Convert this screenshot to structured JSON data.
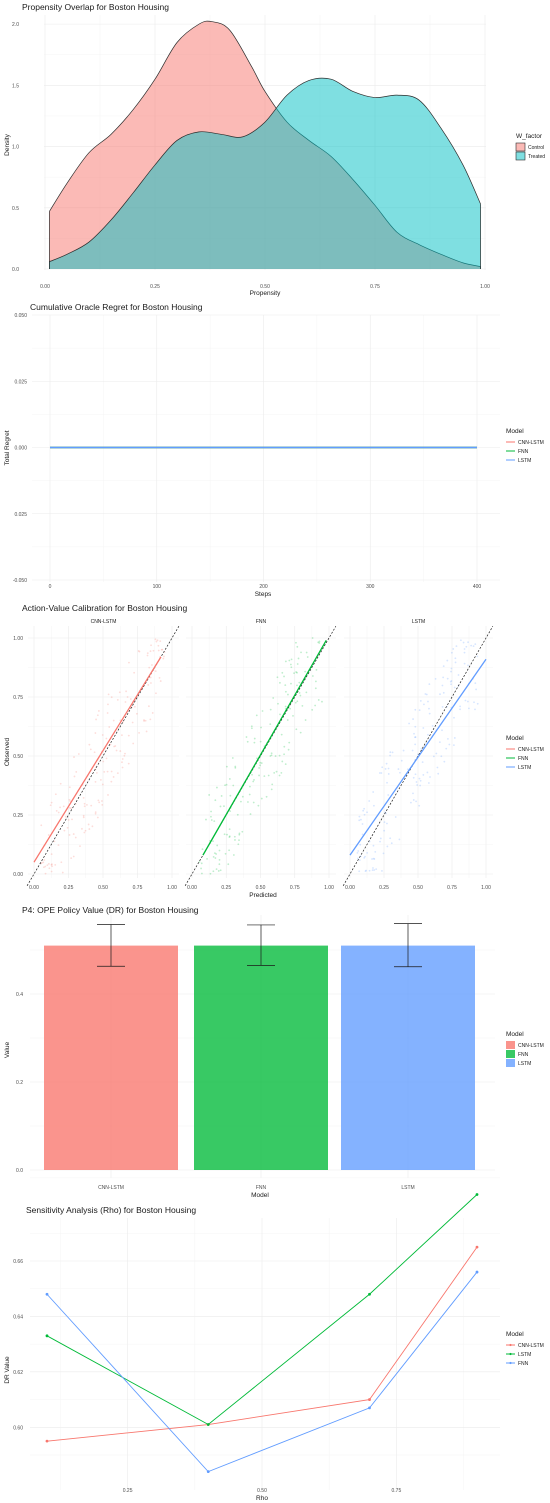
{
  "chart_data": [
    {
      "type": "area",
      "title": "Propensity Overlap for Boston Housing",
      "xlabel": "Propensity",
      "ylabel": "Density",
      "xlim": [
        0,
        1
      ],
      "ylim": [
        0,
        2
      ],
      "xticks": [
        "0.00",
        "0.25",
        "0.50",
        "0.75",
        "1.00"
      ],
      "yticks": [
        "0.0",
        "0.5",
        "1.0",
        "1.5",
        "2.0"
      ],
      "legend_title": "W_factor",
      "legend_position": "right",
      "series": [
        {
          "name": "Control",
          "color": "#F8766D",
          "x": [
            0.01,
            0.05,
            0.1,
            0.15,
            0.2,
            0.25,
            0.3,
            0.35,
            0.38,
            0.42,
            0.47,
            0.5,
            0.55,
            0.6,
            0.65,
            0.7,
            0.75,
            0.8,
            0.85,
            0.9,
            0.95,
            0.99
          ],
          "y": [
            0.47,
            0.7,
            0.95,
            1.1,
            1.3,
            1.55,
            1.85,
            2.0,
            2.02,
            1.95,
            1.65,
            1.45,
            1.2,
            1.05,
            0.92,
            0.73,
            0.52,
            0.3,
            0.2,
            0.12,
            0.05,
            0.02
          ]
        },
        {
          "name": "Treated",
          "color": "#00BFC4",
          "x": [
            0.01,
            0.05,
            0.1,
            0.15,
            0.2,
            0.25,
            0.3,
            0.35,
            0.4,
            0.45,
            0.5,
            0.55,
            0.6,
            0.65,
            0.7,
            0.75,
            0.8,
            0.85,
            0.9,
            0.95,
            0.99
          ],
          "y": [
            0.06,
            0.12,
            0.22,
            0.4,
            0.62,
            0.85,
            1.05,
            1.12,
            1.1,
            1.08,
            1.2,
            1.42,
            1.54,
            1.55,
            1.45,
            1.4,
            1.42,
            1.38,
            1.15,
            0.85,
            0.53
          ]
        }
      ]
    },
    {
      "type": "line",
      "title": "Cumulative Oracle Regret for Boston Housing",
      "xlabel": "Steps",
      "ylabel": "Total Regret",
      "xlim": [
        -20,
        410
      ],
      "ylim": [
        -0.05,
        0.05
      ],
      "xticks": [
        "0",
        "100",
        "200",
        "300",
        "400"
      ],
      "yticks": [
        "0.050",
        "0.025",
        "0.000",
        "0.025",
        "-0.050"
      ],
      "legend_title": "Model",
      "legend_position": "right",
      "series": [
        {
          "name": "CNN-LSTM",
          "color": "#F8766D",
          "x": [
            0,
            400
          ],
          "y": [
            0,
            0
          ]
        },
        {
          "name": "FNN",
          "color": "#00BA38",
          "x": [
            0,
            400
          ],
          "y": [
            0,
            0
          ]
        },
        {
          "name": "LSTM",
          "color": "#619CFF",
          "x": [
            0,
            400
          ],
          "y": [
            0,
            0
          ]
        }
      ]
    },
    {
      "type": "scatter",
      "title": "Action-Value Calibration for Boston Housing",
      "xlabel": "Predicted",
      "ylabel": "Observed",
      "xlim": [
        0,
        1
      ],
      "ylim": [
        0,
        1
      ],
      "xticks": [
        "0.00",
        "0.25",
        "0.50",
        "0.75",
        "1.00"
      ],
      "yticks": [
        "0.00",
        "0.25",
        "0.50",
        "0.75",
        "1.00"
      ],
      "legend_title": "Model",
      "legend_position": "right",
      "panels": [
        {
          "name": "CNN-LSTM",
          "color": "#F8766D",
          "fit": [
            [
              0.0,
              0.05
            ],
            [
              0.92,
              0.92
            ]
          ]
        },
        {
          "name": "FNN",
          "color": "#00BA38",
          "fit": [
            [
              0.08,
              0.08
            ],
            [
              0.98,
              0.99
            ]
          ]
        },
        {
          "name": "LSTM",
          "color": "#619CFF",
          "fit": [
            [
              0.0,
              0.08
            ],
            [
              1.0,
              0.91
            ]
          ]
        }
      ]
    },
    {
      "type": "bar",
      "title": "P4: OPE Policy Value (DR) for Boston Housing",
      "xlabel": "Model",
      "ylabel": "Value",
      "ylim": [
        0,
        0.55
      ],
      "yticks": [
        "0.0",
        "0.2",
        "0.4"
      ],
      "categories": [
        "CNN-LSTM",
        "FNN",
        "LSTM"
      ],
      "values": [
        0.51,
        0.51,
        0.51
      ],
      "error_low": [
        0.463,
        0.465,
        0.462
      ],
      "error_high": [
        0.558,
        0.557,
        0.56
      ],
      "colors": [
        "#F8766D",
        "#00BA38",
        "#619CFF"
      ],
      "legend_title": "Model",
      "legend_position": "right"
    },
    {
      "type": "line",
      "title": "Sensitivity Analysis (Rho) for Boston Housing",
      "xlabel": "Rho",
      "ylabel": "DR Value",
      "xlim": [
        0.05,
        0.95
      ],
      "ylim": [
        0.585,
        0.698
      ],
      "xticks": [
        "0.25",
        "0.50",
        "0.75"
      ],
      "yticks": [
        "0.60",
        "0.62",
        "0.64",
        "0.66"
      ],
      "legend_title": "Model",
      "legend_position": "right",
      "x": [
        0.1,
        0.4,
        0.7,
        0.9
      ],
      "series": [
        {
          "name": "CNN-LSTM",
          "color": "#F8766D",
          "values": [
            0.595,
            0.601,
            0.61,
            0.665
          ]
        },
        {
          "name": "LSTM",
          "color": "#00BA38",
          "values": [
            0.633,
            0.601,
            0.648,
            0.684
          ]
        },
        {
          "name": "FNN",
          "color": "#619CFF",
          "values": [
            0.648,
            0.584,
            0.607,
            0.656
          ]
        }
      ]
    }
  ]
}
